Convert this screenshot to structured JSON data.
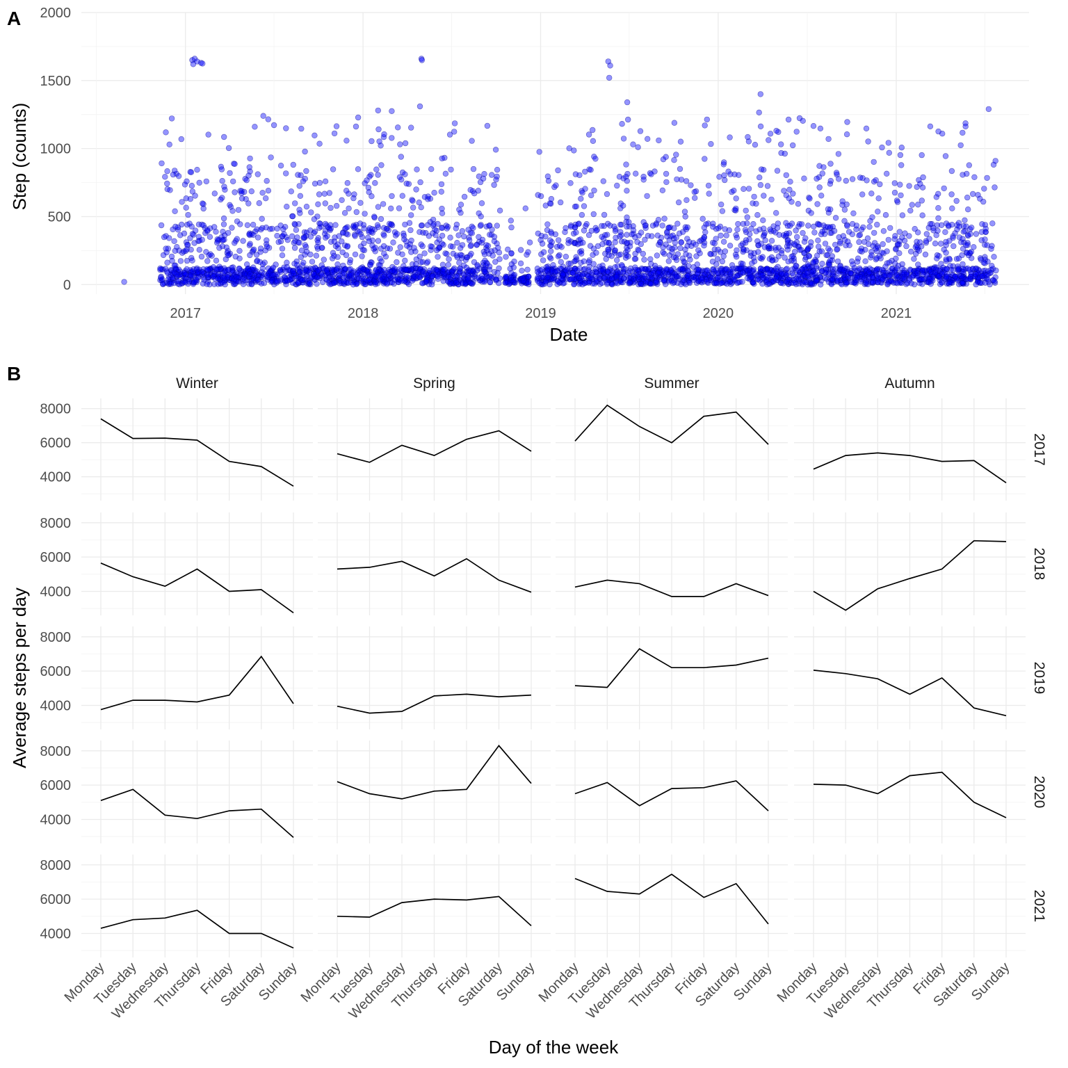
{
  "chart_data": [
    {
      "panel": "A",
      "type": "scatter",
      "xlabel": "Date",
      "ylabel": "Step (counts)",
      "xlim": [
        "2016-06-01",
        "2021-10-01"
      ],
      "ylim": [
        -70,
        2000
      ],
      "x_ticks": [
        "2017",
        "2018",
        "2019",
        "2020",
        "2021"
      ],
      "y_ticks": [
        0,
        500,
        1000,
        1500,
        2000
      ],
      "point_color": "#0000ff",
      "point_outline": "#00008b",
      "data_periods": [
        {
          "start": "2016-11-10",
          "end": "2018-10-10",
          "density": "dense"
        },
        {
          "start": "2018-10-20",
          "end": "2018-11-10",
          "density": "sparse"
        },
        {
          "start": "2018-11-20",
          "end": "2018-12-08",
          "density": "sparse"
        },
        {
          "start": "2018-12-25",
          "end": "2021-07-25",
          "density": "dense"
        }
      ],
      "notable_points": [
        {
          "x": "2016-08-28",
          "y": 20
        },
        {
          "x": "2017-01-15",
          "y": 1650
        },
        {
          "x": "2017-01-17",
          "y": 1620
        },
        {
          "x": "2017-01-20",
          "y": 1660
        },
        {
          "x": "2017-01-25",
          "y": 1640
        },
        {
          "x": "2017-02-02",
          "y": 1630
        },
        {
          "x": "2017-02-05",
          "y": 1625
        },
        {
          "x": "2018-05-01",
          "y": 1660
        },
        {
          "x": "2018-05-02",
          "y": 1650
        },
        {
          "x": "2018-04-28",
          "y": 1310
        },
        {
          "x": "2019-05-20",
          "y": 1640
        },
        {
          "x": "2019-05-24",
          "y": 1610
        },
        {
          "x": "2019-05-22",
          "y": 1520
        },
        {
          "x": "2019-06-28",
          "y": 1340
        },
        {
          "x": "2020-03-28",
          "y": 1400
        },
        {
          "x": "2020-03-25",
          "y": 1265
        },
        {
          "x": "2021-07-10",
          "y": 1290
        },
        {
          "x": "2018-03-01",
          "y": 1275
        },
        {
          "x": "2017-06-10",
          "y": 1240
        },
        {
          "x": "2018-02-01",
          "y": 1280
        },
        {
          "x": "2018-11-01",
          "y": 470
        },
        {
          "x": "2018-11-02",
          "y": 420
        },
        {
          "x": "2018-12-01",
          "y": 560
        },
        {
          "x": "2018-12-10",
          "y": 310
        }
      ]
    },
    {
      "panel": "B",
      "type": "line",
      "xlabel": "Day of the week",
      "ylabel": "Average steps per day",
      "categories": [
        "Monday",
        "Tuesday",
        "Wednesday",
        "Thursday",
        "Friday",
        "Saturday",
        "Sunday"
      ],
      "seasons": [
        "Winter",
        "Spring",
        "Summer",
        "Autumn"
      ],
      "years": [
        "2017",
        "2018",
        "2019",
        "2020",
        "2021"
      ],
      "y_ticks": [
        4000,
        6000,
        8000
      ],
      "ylim": [
        2600,
        8600
      ],
      "line_color": "#000000",
      "values": {
        "2017": {
          "Winter": [
            7400,
            6250,
            6270,
            6150,
            4900,
            4600,
            3450
          ],
          "Spring": [
            5350,
            4850,
            5850,
            5250,
            6200,
            6700,
            5500
          ],
          "Summer": [
            6100,
            8200,
            6950,
            6000,
            7550,
            7800,
            5900
          ],
          "Autumn": [
            4450,
            5250,
            5400,
            5250,
            4900,
            4950,
            3650
          ]
        },
        "2018": {
          "Winter": [
            5650,
            4850,
            4300,
            5300,
            4000,
            4100,
            2750
          ],
          "Spring": [
            5300,
            5400,
            5750,
            4900,
            5900,
            4650,
            3950
          ],
          "Summer": [
            4250,
            4650,
            4450,
            3700,
            3700,
            4450,
            3750
          ],
          "Autumn": [
            4000,
            2900,
            4150,
            4750,
            5300,
            6950,
            6900
          ]
        },
        "2019": {
          "Winter": [
            3750,
            4300,
            4300,
            4200,
            4600,
            6850,
            4100
          ],
          "Spring": [
            3950,
            3550,
            3650,
            4550,
            4650,
            4500,
            4600
          ],
          "Summer": [
            5150,
            5050,
            7300,
            6200,
            6200,
            6350,
            6750
          ],
          "Autumn": [
            6050,
            5850,
            5550,
            4650,
            5600,
            3850,
            3400
          ]
        },
        "2020": {
          "Winter": [
            5100,
            5750,
            4250,
            4050,
            4500,
            4600,
            2950
          ],
          "Spring": [
            6200,
            5500,
            5200,
            5650,
            5750,
            8300,
            6100
          ],
          "Summer": [
            5500,
            6150,
            4800,
            5800,
            5850,
            6250,
            4500
          ],
          "Autumn": [
            6050,
            6000,
            5500,
            6550,
            6750,
            5000,
            4100
          ]
        },
        "2021": {
          "Winter": [
            4300,
            4800,
            4900,
            5350,
            4000,
            4000,
            3150
          ],
          "Spring": [
            5000,
            4950,
            5800,
            6000,
            5950,
            6150,
            4450
          ],
          "Summer": [
            7200,
            6450,
            6300,
            7450,
            6100,
            6900,
            4550
          ],
          "Autumn": []
        }
      }
    }
  ],
  "panel_labels": {
    "a": "A",
    "b": "B"
  }
}
